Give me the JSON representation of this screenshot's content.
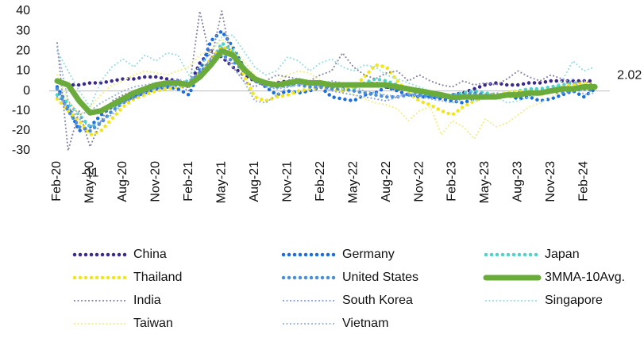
{
  "chart_data": {
    "type": "line",
    "categories": [
      "Feb-20",
      null,
      null,
      "May-20",
      null,
      null,
      "Aug-20",
      null,
      null,
      "Nov-20",
      null,
      null,
      "Feb-21",
      null,
      null,
      "May-21",
      null,
      null,
      "Aug-21",
      null,
      null,
      "Nov-21",
      null,
      null,
      "Feb-22",
      null,
      null,
      "May-22",
      null,
      null,
      "Aug-22",
      null,
      null,
      "Nov-22",
      null,
      null,
      "Feb-23",
      null,
      null,
      "May-23",
      null,
      null,
      "Aug-23",
      null,
      null,
      "Nov-23",
      null,
      null,
      "Feb-24",
      null
    ],
    "ylim": [
      -30,
      40
    ],
    "yticks": [
      -30,
      -20,
      -10,
      0,
      10,
      20,
      30,
      40
    ],
    "series": [
      {
        "name": "China",
        "color": "#3b2a8c",
        "style": "dots",
        "values": [
          5,
          3,
          3,
          4,
          4,
          5,
          6,
          6,
          7,
          7,
          6,
          5,
          2,
          14,
          20,
          17,
          12,
          8,
          5,
          3,
          4,
          5,
          4,
          4,
          3,
          2,
          3,
          3,
          3,
          4,
          2,
          1,
          1,
          -1,
          -2,
          -3,
          -2,
          -1,
          1,
          3,
          4,
          3,
          3,
          4,
          4,
          5,
          5,
          5,
          5,
          5
        ]
      },
      {
        "name": "Germany",
        "color": "#1a6fe0",
        "style": "dots",
        "values": [
          2,
          -8,
          -20,
          -18,
          -12,
          -8,
          -5,
          -3,
          -1,
          1,
          2,
          1,
          -2,
          10,
          25,
          30,
          22,
          12,
          6,
          2,
          -2,
          0,
          -1,
          0,
          2,
          -3,
          -4,
          -5,
          -2,
          -1,
          2,
          0,
          -2,
          -3,
          -3,
          -4,
          -5,
          -6,
          -4,
          -3,
          -3,
          -2,
          -4,
          -3,
          -5,
          -4,
          -2,
          0,
          -3,
          1
        ]
      },
      {
        "name": "Japan",
        "color": "#4fd3c8",
        "style": "dots",
        "values": [
          -2,
          -6,
          -12,
          -18,
          -16,
          -10,
          -6,
          -2,
          0,
          2,
          3,
          4,
          5,
          8,
          14,
          24,
          20,
          12,
          6,
          3,
          2,
          3,
          4,
          3,
          3,
          2,
          0,
          1,
          4,
          6,
          5,
          3,
          1,
          -1,
          -2,
          -3,
          -2,
          -1,
          0,
          -1,
          -2,
          -1,
          0,
          1,
          1,
          2,
          3,
          4,
          3,
          2
        ]
      },
      {
        "name": "Thailand",
        "color": "#f2e51a",
        "style": "dots",
        "values": [
          -4,
          -10,
          -15,
          -22,
          -20,
          -14,
          -8,
          -4,
          -2,
          0,
          1,
          2,
          3,
          9,
          16,
          22,
          20,
          8,
          -3,
          -5,
          -3,
          -2,
          0,
          1,
          2,
          1,
          0,
          2,
          7,
          13,
          12,
          5,
          -1,
          -5,
          -7,
          -10,
          -12,
          -8,
          -5,
          -3,
          -2,
          -1,
          0,
          -1,
          -2,
          0,
          2,
          3,
          4,
          3
        ]
      },
      {
        "name": "United States",
        "color": "#4a8fd8",
        "style": "dots",
        "values": [
          1,
          -10,
          -18,
          -20,
          -16,
          -10,
          -6,
          -3,
          0,
          2,
          3,
          3,
          4,
          9,
          15,
          18,
          15,
          10,
          5,
          3,
          2,
          3,
          3,
          2,
          2,
          1,
          1,
          0,
          -1,
          -2,
          -3,
          -3,
          -2,
          -2,
          -3,
          -3,
          -2,
          -2,
          -1,
          -2,
          -3,
          -2,
          -1,
          -2,
          -1,
          0,
          -1,
          0,
          1,
          0
        ]
      },
      {
        "name": "3MMA-10Avg.",
        "color": "#6aab3c",
        "style": "solid",
        "labels": [
          "min",
          "last"
        ],
        "values": [
          5,
          3,
          -5,
          -11,
          -10,
          -7,
          -4,
          -1,
          1,
          3,
          4,
          4,
          3,
          7,
          13,
          20,
          18,
          11,
          6,
          4,
          3,
          4,
          5,
          4,
          4,
          3,
          3,
          3,
          3,
          3,
          3,
          2,
          1,
          0,
          -1,
          -2,
          -3.23,
          -3,
          -3,
          -3,
          -3,
          -2,
          -2,
          -1,
          -1,
          0,
          1,
          1,
          2,
          2.02
        ]
      },
      {
        "name": "India",
        "color": "#8b88a8",
        "style": "small-dots",
        "values": [
          24,
          -30,
          -10,
          -28,
          -15,
          -5,
          -2,
          0,
          2,
          4,
          5,
          3,
          0,
          40,
          15,
          40,
          12,
          5,
          2,
          5,
          8,
          7,
          6,
          5,
          8,
          10,
          19,
          12,
          8,
          6,
          9,
          10,
          5,
          8,
          5,
          3,
          2,
          5,
          3,
          4,
          3,
          6,
          10,
          7,
          5,
          8,
          6,
          4,
          5,
          3
        ]
      },
      {
        "name": "South Korea",
        "color": "#8aa2ea",
        "style": "small-dots",
        "values": [
          -3,
          -8,
          -14,
          -18,
          -15,
          -12,
          -6,
          -4,
          -1,
          1,
          2,
          4,
          5,
          10,
          16,
          22,
          18,
          10,
          5,
          2,
          1,
          2,
          3,
          4,
          2,
          0,
          -1,
          -2,
          -3,
          -4,
          -5,
          -3,
          -2,
          -1,
          -1,
          -2,
          -3,
          -4,
          -3,
          -2,
          -1,
          -2,
          -3,
          -2,
          -1,
          0,
          0,
          1,
          2,
          1
        ]
      },
      {
        "name": "Singapore",
        "color": "#9fdede",
        "style": "small-dots",
        "values": [
          20,
          10,
          0,
          -8,
          5,
          12,
          16,
          12,
          18,
          15,
          19,
          18,
          8,
          12,
          20,
          27,
          28,
          20,
          12,
          8,
          10,
          17,
          15,
          10,
          14,
          16,
          12,
          10,
          13,
          12,
          8,
          6,
          4,
          2,
          0,
          -2,
          -4,
          -2,
          -5,
          -4,
          -3,
          -6,
          -5,
          -3,
          -2,
          0,
          5,
          15,
          10,
          12
        ]
      },
      {
        "name": "Taiwan",
        "color": "#f4ee88",
        "style": "small-dots",
        "values": [
          8,
          -5,
          -12,
          -8,
          -2,
          3,
          5,
          8,
          10,
          9,
          8,
          10,
          12,
          18,
          20,
          26,
          22,
          15,
          8,
          3,
          5,
          8,
          10,
          9,
          5,
          3,
          1,
          -2,
          -4,
          -6,
          -7,
          -9,
          -15,
          -10,
          -8,
          -22,
          -15,
          -18,
          -24,
          -14,
          -18,
          -16,
          -12,
          -8,
          -6,
          -3,
          0,
          2,
          4,
          2
        ]
      },
      {
        "name": "Vietnam",
        "color": "#9ab3d6",
        "style": "small-dots",
        "values": [
          22,
          -5,
          -12,
          -10,
          -6,
          -3,
          0,
          2,
          3,
          4,
          5,
          6,
          4,
          8,
          14,
          18,
          12,
          5,
          -5,
          -6,
          -2,
          2,
          3,
          4,
          3,
          5,
          4,
          2,
          0,
          -1,
          -2,
          -3,
          -1,
          -3,
          -4,
          -5,
          -6,
          -4,
          -3,
          -2,
          -4,
          -3,
          -2,
          -1,
          0,
          1,
          2,
          6,
          -2,
          -1
        ]
      }
    ]
  }
}
